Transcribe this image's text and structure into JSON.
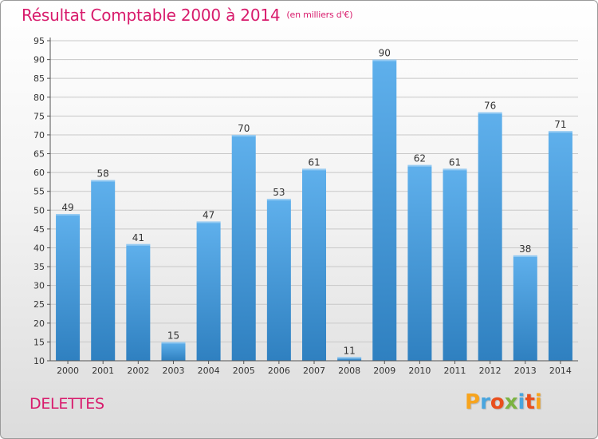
{
  "header": {
    "title": "Résultat Comptable 2000 à 2014",
    "unit": "(en milliers d'€)"
  },
  "footer": {
    "commune": "DELETTES",
    "logo": [
      "P",
      "r",
      "o",
      "x",
      "i",
      "t",
      "i"
    ],
    "logo_colors": [
      "#f7a41d",
      "#49a5de",
      "#e94f1d",
      "#7cb342",
      "#49a5de",
      "#e94f1d",
      "#f7a41d"
    ]
  },
  "colors": {
    "bar_light": "#5fb0ec",
    "bar_dark": "#2f80c0",
    "title": "#d81b6c",
    "grid": "#c8c8c8"
  },
  "chart_data": {
    "type": "bar",
    "title": "Résultat Comptable 2000 à 2014",
    "xlabel": "",
    "ylabel": "",
    "categories": [
      "2000",
      "2001",
      "2002",
      "2003",
      "2004",
      "2005",
      "2006",
      "2007",
      "2008",
      "2009",
      "2010",
      "2011",
      "2012",
      "2013",
      "2014"
    ],
    "values": [
      49,
      58,
      41,
      15,
      47,
      70,
      53,
      61,
      11,
      90,
      62,
      61,
      76,
      38,
      71
    ],
    "ylim": [
      10,
      95
    ],
    "yticks": [
      10,
      15,
      20,
      25,
      30,
      35,
      40,
      45,
      50,
      55,
      60,
      65,
      70,
      75,
      80,
      85,
      90,
      95
    ],
    "grid": true
  }
}
